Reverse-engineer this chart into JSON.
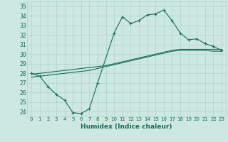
{
  "xlabel": "Humidex (Indice chaleur)",
  "ylabel": "",
  "xlim": [
    -0.5,
    23.5
  ],
  "ylim": [
    23.5,
    35.5
  ],
  "yticks": [
    24,
    25,
    26,
    27,
    28,
    29,
    30,
    31,
    32,
    33,
    34,
    35
  ],
  "xticks": [
    0,
    1,
    2,
    3,
    4,
    5,
    6,
    7,
    8,
    9,
    10,
    11,
    12,
    13,
    14,
    15,
    16,
    17,
    18,
    19,
    20,
    21,
    22,
    23
  ],
  "background_color": "#cce8e0",
  "grid_color": "#aad4cc",
  "line_color": "#1a6b5a",
  "line1_x": [
    0,
    1,
    2,
    3,
    4,
    5,
    6,
    7,
    8,
    10,
    11,
    12,
    13,
    14,
    15,
    16,
    17,
    18,
    19,
    20,
    21,
    22,
    23
  ],
  "line1_y": [
    28.0,
    27.7,
    26.6,
    25.8,
    25.2,
    23.9,
    23.8,
    24.3,
    27.0,
    32.2,
    33.9,
    33.2,
    33.5,
    34.1,
    34.2,
    34.6,
    33.5,
    32.2,
    31.5,
    31.6,
    31.1,
    30.8,
    30.4
  ],
  "line2_x": [
    0,
    1,
    2,
    3,
    4,
    5,
    6,
    7,
    8,
    9,
    10,
    11,
    12,
    13,
    14,
    15,
    16,
    17,
    18,
    19,
    20,
    21,
    22,
    23
  ],
  "line2_y": [
    27.9,
    28.0,
    28.1,
    28.2,
    28.3,
    28.4,
    28.5,
    28.6,
    28.7,
    28.8,
    29.0,
    29.2,
    29.4,
    29.6,
    29.8,
    30.0,
    30.2,
    30.4,
    30.5,
    30.5,
    30.5,
    30.5,
    30.5,
    30.5
  ],
  "line3_x": [
    0,
    1,
    2,
    3,
    4,
    5,
    6,
    7,
    8,
    9,
    10,
    11,
    12,
    13,
    14,
    15,
    16,
    17,
    18,
    19,
    20,
    21,
    22,
    23
  ],
  "line3_y": [
    27.6,
    27.7,
    27.8,
    27.9,
    28.0,
    28.1,
    28.2,
    28.3,
    28.5,
    28.7,
    28.9,
    29.1,
    29.3,
    29.5,
    29.7,
    29.9,
    30.1,
    30.3,
    30.4,
    30.4,
    30.4,
    30.4,
    30.3,
    30.3
  ]
}
